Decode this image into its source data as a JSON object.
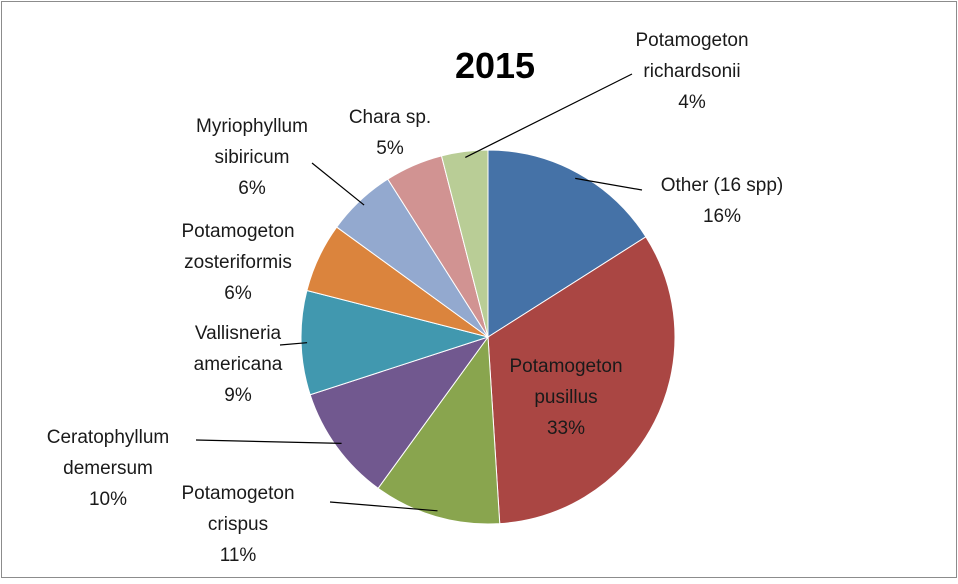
{
  "chart_data": {
    "type": "pie",
    "title": "2015",
    "categories": [
      "Other (16 spp)",
      "Potamogeton\npusillus",
      "Potamogeton\ncrispus",
      "Ceratophyllum\ndemersum",
      "Vallisneria\namericana",
      "Potamogeton\nzosteriformis",
      "Myriophyllum\nsibiricum",
      "Chara sp.",
      "Potamogeton\nrichardsonii"
    ],
    "values": [
      16,
      33,
      11,
      10,
      9,
      6,
      6,
      5,
      4
    ],
    "value_labels": [
      "16%",
      "33%",
      "11%",
      "10%",
      "9%",
      "6%",
      "6%",
      "5%",
      "4%"
    ],
    "colors": [
      "#4572A7",
      "#AA4643",
      "#89A54E",
      "#71588F",
      "#4198AF",
      "#DB843D",
      "#93A9CF",
      "#D19392",
      "#B9CD96"
    ]
  }
}
